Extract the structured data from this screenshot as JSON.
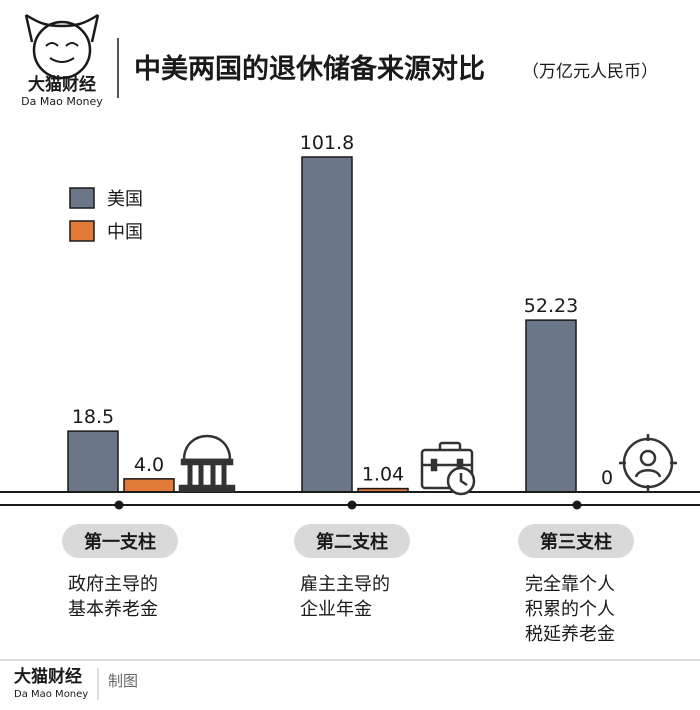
{
  "header": {
    "title": "中美两国的退休储备来源对比",
    "unit": "（万亿元人民币）",
    "brand_name": "大猫财经",
    "brand_sub": "Da Mao Money"
  },
  "colors": {
    "us": "#6b7688",
    "cn": "#e07b39",
    "axis": "#1a1a1a",
    "pill": "#d9d9d9",
    "icon": "#333333"
  },
  "chart_data": {
    "type": "bar",
    "categories": [
      "第一支柱",
      "第二支柱",
      "第三支柱"
    ],
    "category_descriptions": [
      [
        "政府主导的",
        "基本养老金"
      ],
      [
        "雇主主导的",
        "企业年金"
      ],
      [
        "完全靠个人",
        "积累的个人",
        "税延养老金"
      ]
    ],
    "series": [
      {
        "name": "美国",
        "values": [
          18.5,
          101.8,
          52.23
        ],
        "labels": [
          "18.5",
          "101.8",
          "52.23"
        ]
      },
      {
        "name": "中国",
        "values": [
          4.0,
          1.04,
          0
        ],
        "labels": [
          "4.0",
          "1.04",
          "0"
        ]
      }
    ],
    "ylim": [
      0,
      101.8
    ],
    "legend_position": "top-left",
    "icons": [
      "government-building-icon",
      "briefcase-clock-icon",
      "person-target-icon"
    ]
  },
  "footer": {
    "brand_name": "大猫财经",
    "brand_sub": "Da Mao Money",
    "made_label": "制图"
  }
}
